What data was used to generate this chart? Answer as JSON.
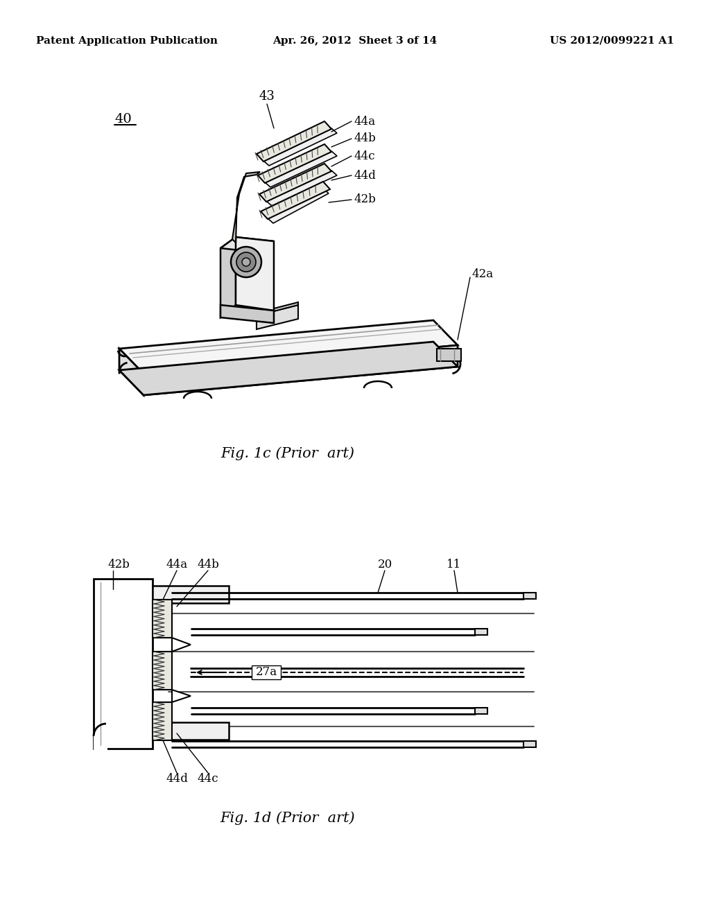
{
  "background_color": "#ffffff",
  "header": {
    "left": "Patent Application Publication",
    "center": "Apr. 26, 2012  Sheet 3 of 14",
    "right": "US 2012/0099221 A1",
    "fontsize": 11
  },
  "fig1c_caption": "Fig. 1c (Prior  art)",
  "fig1d_caption": "Fig. 1d (Prior  art)",
  "label_40": "40",
  "label_43": "43",
  "label_44a_top": "44a",
  "label_44b_top": "44b",
  "label_44c_top": "44c",
  "label_44d_top": "44d",
  "label_42b_top": "42b",
  "label_42a": "42a",
  "label_42b_bot": "42b",
  "label_44a_bot": "44a",
  "label_44b_bot": "44b",
  "label_20": "20",
  "label_11": "11",
  "label_27a": "27a",
  "label_44d_bot": "44d",
  "label_44c_bot": "44c"
}
